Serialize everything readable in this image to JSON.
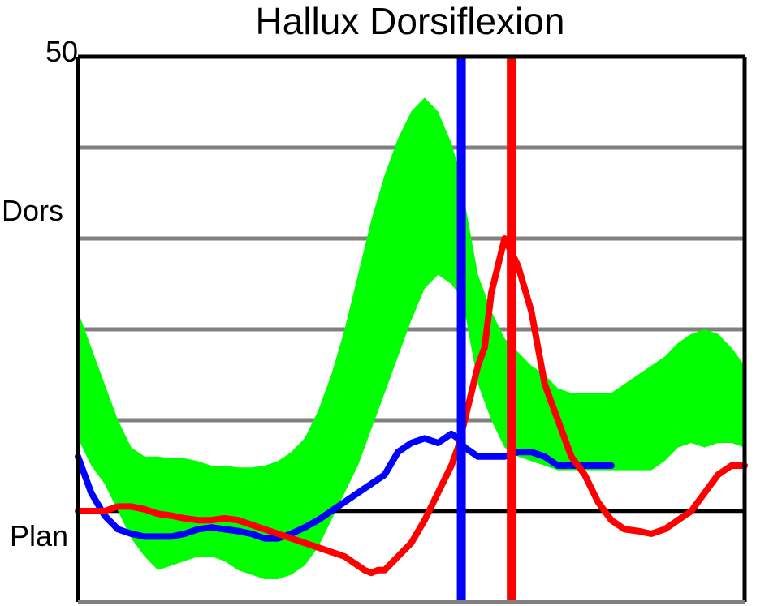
{
  "chart_data": {
    "type": "line",
    "title": "Hallux Dorsiflexion",
    "ylim": [
      -10,
      50
    ],
    "xlim": [
      0,
      100
    ],
    "y_top_label": "50",
    "y_region_labels": {
      "upper": "Dors",
      "lower": "Plan"
    },
    "gridlines_y": [
      -10,
      0,
      10,
      20,
      30,
      40
    ],
    "zero_line_y": 0,
    "colors": {
      "band": "#00ff00",
      "series_blue": "#0000ff",
      "series_red": "#ff0000",
      "grid": "#808080",
      "axis": "#000000"
    },
    "normal_band": {
      "x": [
        0,
        2,
        4,
        6,
        8,
        10,
        12,
        14,
        16,
        18,
        20,
        22,
        24,
        26,
        28,
        30,
        32,
        34,
        36,
        38,
        40,
        42,
        44,
        46,
        48,
        50,
        52,
        54,
        56,
        57,
        58,
        59,
        60,
        62,
        64,
        66,
        68,
        70,
        72,
        74,
        76,
        78,
        80,
        82,
        84,
        86,
        88,
        90,
        92,
        94,
        96,
        98,
        100
      ],
      "upper": [
        22,
        18,
        14,
        10,
        7,
        6,
        6,
        5.8,
        5.8,
        5.5,
        5,
        5,
        4.8,
        4.8,
        5,
        5.5,
        6.5,
        8,
        11,
        15,
        20,
        26,
        32,
        37,
        41,
        44,
        45.5,
        44,
        40.5,
        38,
        34,
        30,
        26,
        22,
        19,
        17.5,
        16,
        15,
        13.5,
        13,
        13,
        13,
        13,
        14,
        15,
        16,
        17,
        18.5,
        19.5,
        20,
        19.5,
        18,
        16
      ],
      "lower": [
        8,
        5,
        3,
        0,
        -3,
        -5,
        -6.5,
        -6,
        -5.5,
        -5,
        -5,
        -5.5,
        -6.5,
        -7,
        -7.5,
        -7.5,
        -7,
        -6,
        -4,
        -1,
        2,
        5,
        9,
        13,
        17,
        21,
        24.5,
        26,
        25,
        24,
        22,
        18,
        14,
        10,
        7,
        6,
        5.5,
        5,
        4.5,
        4.5,
        4.5,
        4.5,
        4.5,
        4.5,
        4.5,
        4.5,
        5.5,
        7,
        7.5,
        7,
        7.5,
        7.5,
        7
      ]
    },
    "series": [
      {
        "color": "#0000ff",
        "x": [
          0,
          1,
          2,
          4,
          6,
          8,
          10,
          12,
          14,
          16,
          18,
          20,
          22,
          24,
          26,
          28,
          30,
          32,
          34,
          36,
          38,
          40,
          42,
          44,
          46,
          48,
          50,
          52,
          54,
          56,
          57,
          58,
          60,
          62,
          64,
          66,
          68,
          70,
          72,
          74,
          76,
          78,
          80
        ],
        "y": [
          6,
          4,
          2,
          -0.5,
          -2,
          -2.5,
          -2.8,
          -2.8,
          -2.8,
          -2.5,
          -2,
          -1.8,
          -2,
          -2.2,
          -2.5,
          -3,
          -3,
          -2.5,
          -1.8,
          -1,
          0,
          1,
          2,
          3,
          4,
          6.5,
          7.5,
          8,
          7.5,
          8.5,
          8,
          7,
          6,
          6,
          6,
          6.5,
          6.5,
          6,
          5,
          5,
          5,
          5,
          5
        ]
      },
      {
        "color": "#ff0000",
        "x": [
          0,
          2,
          4,
          6,
          8,
          10,
          12,
          14,
          16,
          18,
          20,
          22,
          24,
          26,
          28,
          30,
          32,
          34,
          36,
          38,
          40,
          42,
          43,
          44,
          45,
          46,
          48,
          50,
          52,
          54,
          56,
          57,
          58,
          60,
          61,
          62,
          64,
          66,
          68,
          70,
          72,
          74,
          76,
          78,
          80,
          82,
          84,
          86,
          88,
          90,
          92,
          94,
          96,
          98,
          100
        ],
        "y": [
          0,
          0,
          0,
          0.5,
          0.5,
          0.2,
          -0.3,
          -0.5,
          -0.8,
          -1,
          -1,
          -0.8,
          -1,
          -1.5,
          -2,
          -2.5,
          -3,
          -3.5,
          -4,
          -4.5,
          -5,
          -6,
          -6.5,
          -6.8,
          -6.5,
          -6.5,
          -5,
          -3.5,
          -1,
          2,
          5,
          7,
          10,
          16,
          18,
          24,
          30,
          27,
          22,
          14,
          10,
          6,
          4,
          1,
          -1,
          -2,
          -2.2,
          -2.5,
          -2,
          -1,
          0,
          2,
          4,
          5,
          5
        ]
      }
    ],
    "vertical_markers": [
      {
        "x": 57.5,
        "color": "#0000ff"
      },
      {
        "x": 65,
        "color": "#ff0000"
      }
    ]
  }
}
